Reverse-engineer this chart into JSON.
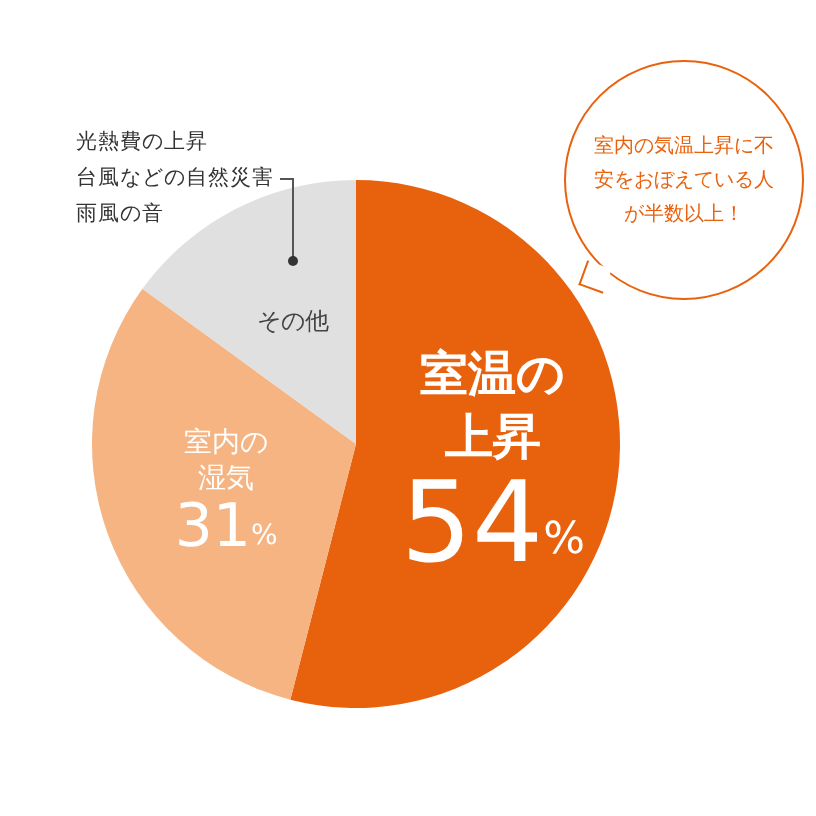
{
  "chart_data": {
    "type": "pie",
    "categories": [
      "室温の上昇",
      "室内の湿気",
      "その他"
    ],
    "values": [
      54,
      31,
      15
    ],
    "colors": [
      "#e8620e",
      "#f5b482",
      "#e0e0e0"
    ],
    "value_labels": [
      "54%",
      "31%",
      null
    ],
    "annotations": [
      "光熱費の上昇",
      "台風などの自然災害",
      "雨風の音",
      "室内の気温上昇に不安をおぼえている人が半数以上！"
    ],
    "legend": false
  }
}
